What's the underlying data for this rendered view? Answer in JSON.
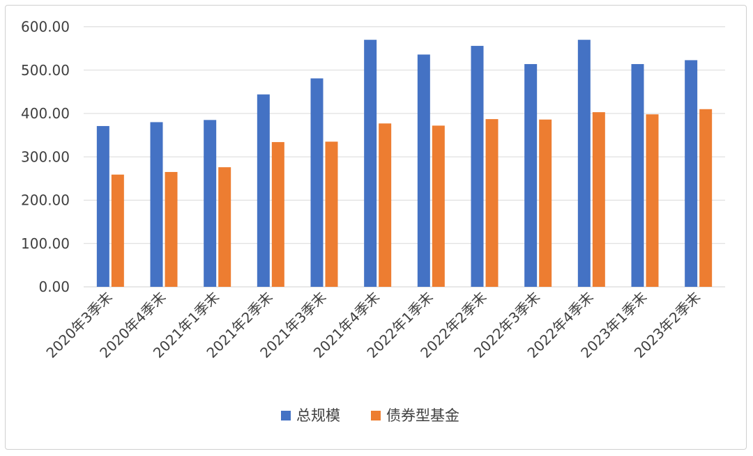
{
  "chart_data": {
    "type": "bar",
    "categories": [
      "2020年3季末",
      "2020年4季末",
      "2021年1季末",
      "2021年2季末",
      "2021年3季末",
      "2021年4季末",
      "2022年1季末",
      "2022年2季末",
      "2022年3季末",
      "2022年4季末",
      "2023年1季末",
      "2023年2季末"
    ],
    "series": [
      {
        "name": "总规模",
        "color": "#4472C4",
        "values": [
          371,
          380,
          385,
          444,
          481,
          570,
          536,
          556,
          514,
          570,
          514,
          523
        ]
      },
      {
        "name": "债券型基金",
        "color": "#ED7D31",
        "values": [
          259,
          265,
          276,
          334,
          335,
          377,
          372,
          387,
          386,
          403,
          398,
          410
        ]
      }
    ],
    "ylim": [
      0,
      600
    ],
    "yticks": [
      "0.00",
      "100.00",
      "200.00",
      "300.00",
      "400.00",
      "500.00",
      "600.00"
    ],
    "grid": true,
    "legend_position": "bottom"
  }
}
